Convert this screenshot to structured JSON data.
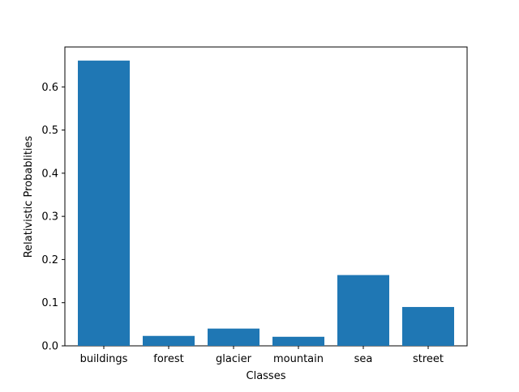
{
  "chart_data": {
    "type": "bar",
    "title": "",
    "xlabel": "Classes",
    "ylabel": "Relativistic Probablities",
    "categories": [
      "buildings",
      "forest",
      "glacier",
      "mountain",
      "sea",
      "street"
    ],
    "values": [
      0.661,
      0.023,
      0.04,
      0.021,
      0.164,
      0.09
    ],
    "ylim": [
      0,
      0.6925
    ],
    "yticks": [
      0.0,
      0.1,
      0.2,
      0.3,
      0.4,
      0.5,
      0.6
    ],
    "ytick_labels": [
      "0.0",
      "0.1",
      "0.2",
      "0.3",
      "0.4",
      "0.5",
      "0.6"
    ],
    "grid": false,
    "legend": "none",
    "bar_color": "#1f77b4"
  }
}
